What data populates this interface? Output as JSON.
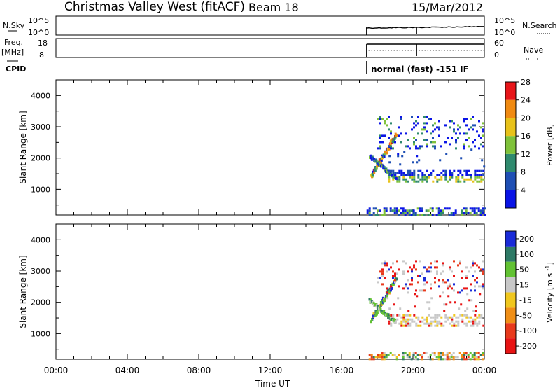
{
  "header": {
    "station": "Christmas Valley West (fitACF)",
    "beam": "Beam 18",
    "date": "15/Mar/2012"
  },
  "strip": {
    "nsky_label": "N.Sky",
    "nsky_ticks": [
      "10^5",
      "10^0"
    ],
    "nsky_right_ticks": [
      "10^5",
      "10^0"
    ],
    "nsearch_label": "N.Search",
    "freq_label": "Freq.",
    "freq_unit": "[MHz]",
    "freq_ticks": [
      "18",
      "8"
    ],
    "nave_ticks": [
      "60",
      "0"
    ],
    "nave_label": "Nave",
    "cpid_label": "CPID",
    "cpid_text": "normal (fast) -151 IF",
    "data_start_hour": 17.4,
    "mode_change_hour": 20.2
  },
  "axes": {
    "ylabel": "Slant Range [km]",
    "yticks": [
      1000,
      2000,
      3000,
      4000
    ],
    "yrange": [
      180,
      4500
    ],
    "xrange": [
      0,
      24
    ],
    "xtick_labels": [
      "00:00",
      "04:00",
      "08:00",
      "12:00",
      "16:00",
      "20:00",
      "00:00"
    ],
    "xlabel": "Time UT"
  },
  "power_bar": {
    "label": "Power [dB]",
    "ticks": [
      "4",
      "8",
      "12",
      "16",
      "20",
      "24",
      "28"
    ],
    "colors": [
      "#0a14e6",
      "#1f4fb4",
      "#2f8a6e",
      "#7fc23a",
      "#e8c21a",
      "#f08a12",
      "#e8161a"
    ]
  },
  "velocity_bar": {
    "label": "Velocity [m s",
    "label_sup": "-1",
    "label_end": "]",
    "ticks": [
      "200",
      "100",
      "50",
      "15",
      "-15",
      "-50",
      "-100",
      "-200"
    ],
    "colors": [
      "#1a2bd8",
      "#2e7a66",
      "#62c233",
      "#c8c8c8",
      "#f0c71e",
      "#f08f17",
      "#e83a1c",
      "#e81414"
    ]
  },
  "chart_data": [
    {
      "type": "heatmap",
      "title": "Power",
      "x_unit": "hours UT",
      "y_unit": "km",
      "regions": [
        {
          "name": "near_range",
          "t": [
            17.4,
            24
          ],
          "range": [
            200,
            400
          ],
          "class": "low"
        },
        {
          "name": "low_band",
          "t": [
            17.4,
            24
          ],
          "range": [
            1250,
            1600
          ],
          "class": "mid"
        },
        {
          "name": "rising_arc",
          "t": [
            17.6,
            19.0
          ],
          "range": [
            1300,
            2700
          ],
          "class": "high"
        },
        {
          "name": "upper_scatter",
          "t": [
            17.8,
            24
          ],
          "range": [
            2300,
            3300
          ],
          "class": "mixed"
        }
      ]
    },
    {
      "type": "heatmap",
      "title": "Velocity",
      "x_unit": "hours UT",
      "y_unit": "km",
      "regions": [
        {
          "name": "near_range",
          "t": [
            17.4,
            24
          ],
          "range": [
            200,
            400
          ],
          "class": "mixed"
        },
        {
          "name": "low_band",
          "t": [
            19.5,
            24
          ],
          "range": [
            1300,
            1600
          ],
          "class": "gray"
        },
        {
          "name": "rising_arc",
          "t": [
            17.6,
            19.0
          ],
          "range": [
            1300,
            2700
          ],
          "class": "green"
        },
        {
          "name": "upper_scatter",
          "t": [
            19.5,
            24
          ],
          "range": [
            2500,
            3300
          ],
          "class": "red"
        }
      ]
    }
  ]
}
